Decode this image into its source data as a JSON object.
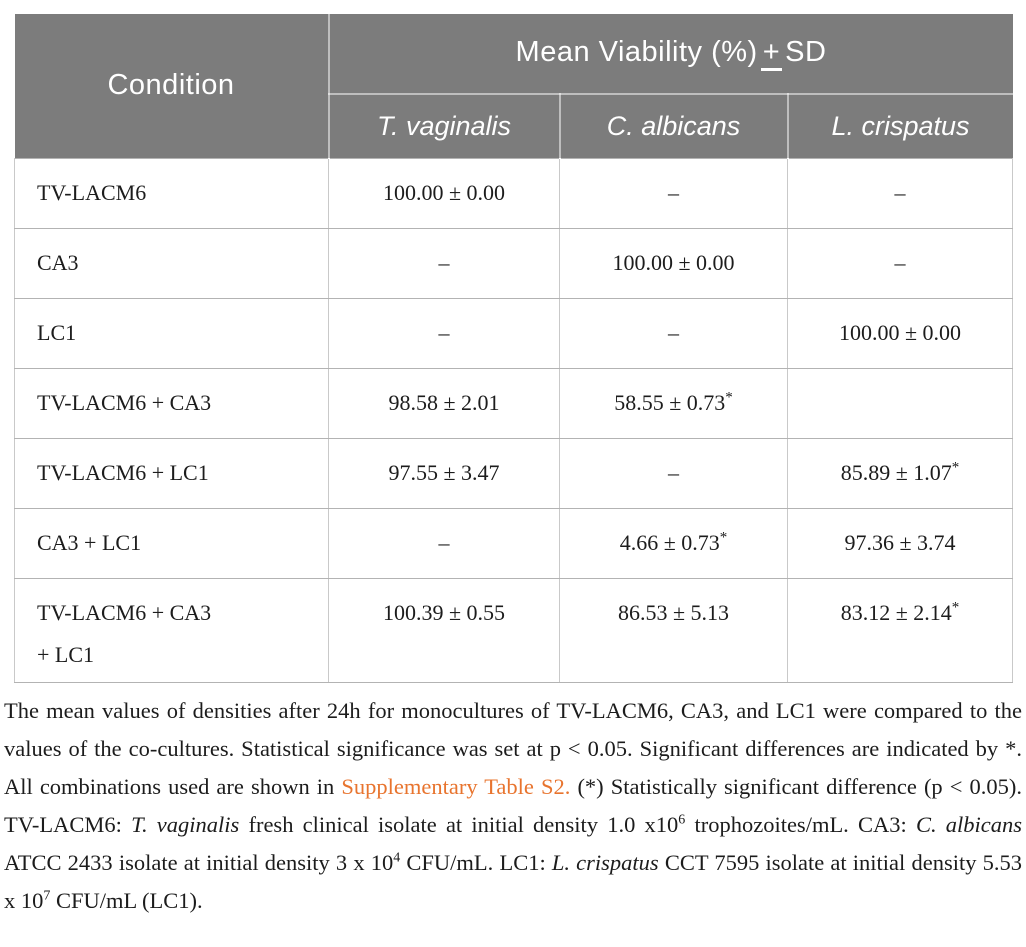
{
  "colors": {
    "header_bg": "#7c7c7c",
    "link_orange": "#e8742e",
    "body_text": "#1c1c1c"
  },
  "table": {
    "star_symbol": "*",
    "header": {
      "condition": "Condition",
      "mean_viability_prefix": "Mean Viability (%)",
      "plus_minus": "+",
      "sd": "SD",
      "species": [
        "T. vaginalis",
        "C. albicans",
        "L. crispatus"
      ]
    },
    "rows": [
      {
        "condition": "TV-LACM6",
        "cells": [
          {
            "text": "100.00 ± 0.00"
          },
          {
            "text": "–"
          },
          {
            "text": "–"
          }
        ]
      },
      {
        "condition": "CA3",
        "cells": [
          {
            "text": "–"
          },
          {
            "text": "100.00 ± 0.00"
          },
          {
            "text": "–"
          }
        ]
      },
      {
        "condition": "LC1",
        "cells": [
          {
            "text": "–"
          },
          {
            "text": "–"
          },
          {
            "text": "100.00 ± 0.00"
          }
        ]
      },
      {
        "condition": "TV-LACM6 + CA3",
        "cells": [
          {
            "text": "98.58 ± 2.01"
          },
          {
            "text": "58.55 ± 0.73",
            "star": true
          },
          {
            "text": ""
          }
        ]
      },
      {
        "condition": "TV-LACM6 + LC1",
        "cells": [
          {
            "text": "97.55 ± 3.47"
          },
          {
            "text": "–"
          },
          {
            "text": "85.89 ± 1.07",
            "star": true
          }
        ]
      },
      {
        "condition": "CA3 + LC1",
        "cells": [
          {
            "text": "–"
          },
          {
            "text": "4.66 ± 0.73",
            "star": true
          },
          {
            "text": "97.36 ± 3.74"
          }
        ]
      },
      {
        "condition": "TV-LACM6 + CA3\n+ LC1",
        "tall": true,
        "cells": [
          {
            "text": "100.39 ± 0.55"
          },
          {
            "text": "86.53 ± 5.13"
          },
          {
            "text": "83.12 ± 2.14",
            "star": true
          }
        ]
      }
    ]
  },
  "footnote": {
    "segments": [
      {
        "style": "normal",
        "text": "The mean values of densities after 24h for monocultures of TV-LACM6, CA3, and LC1 were compared to the values of the co-cultures. Statistical significance was set at p < 0.05. Significant differences are indicated by *. All combinations used are shown in "
      },
      {
        "style": "link",
        "text": "Supplementary Table S2."
      },
      {
        "style": "normal",
        "text": " (*) Statistically significant difference (p < 0.05). TV-LACM6: "
      },
      {
        "style": "italic",
        "text": "T. vaginalis"
      },
      {
        "style": "normal",
        "text": " fresh clinical isolate at initial density 1.0 x10"
      },
      {
        "style": "sup",
        "text": "6"
      },
      {
        "style": "normal",
        "text": " trophozoites/mL. CA3: "
      },
      {
        "style": "italic",
        "text": "C. albicans"
      },
      {
        "style": "normal",
        "text": " ATCC 2433 isolate at initial density 3 x 10"
      },
      {
        "style": "sup",
        "text": "4"
      },
      {
        "style": "normal",
        "text": " CFU/mL. LC1: "
      },
      {
        "style": "italic",
        "text": "L. crispatus"
      },
      {
        "style": "normal",
        "text": " CCT 7595 isolate at initial density 5.53 x 10"
      },
      {
        "style": "sup",
        "text": "7"
      },
      {
        "style": "normal",
        "text": " CFU/mL (LC1)."
      }
    ]
  }
}
